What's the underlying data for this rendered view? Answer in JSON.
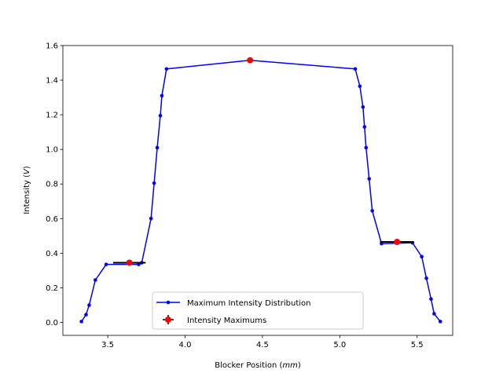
{
  "chart_data": {
    "type": "line",
    "title": "",
    "xlabel": {
      "prefix": "Blocker Position (",
      "unit": "mm",
      "suffix": ")"
    },
    "ylabel": {
      "prefix": "Intensity (",
      "unit": "V",
      "suffix": ")"
    },
    "xlim": [
      3.21,
      5.73
    ],
    "ylim": [
      -0.075,
      1.6
    ],
    "xticks": [
      3.5,
      4.0,
      4.5,
      5.0,
      5.5
    ],
    "xtick_labels": [
      "3.5",
      "4.0",
      "4.5",
      "5.0",
      "5.5"
    ],
    "yticks": [
      0.0,
      0.2,
      0.4,
      0.6,
      0.8,
      1.0,
      1.2,
      1.4,
      1.6
    ],
    "ytick_labels": [
      "0.0",
      "0.2",
      "0.4",
      "0.6",
      "0.8",
      "1.0",
      "1.2",
      "1.4",
      "1.6"
    ],
    "grid": false,
    "legend_position": "lower-center",
    "series": [
      {
        "name": "Maximum Intensity Distribution",
        "color": "#0000ff",
        "marker": "dot",
        "points": [
          [
            3.33,
            0.005
          ],
          [
            3.36,
            0.045
          ],
          [
            3.38,
            0.1
          ],
          [
            3.42,
            0.245
          ],
          [
            3.49,
            0.335
          ],
          [
            3.7,
            0.335
          ],
          [
            3.72,
            0.345
          ],
          [
            3.78,
            0.6
          ],
          [
            3.8,
            0.805
          ],
          [
            3.82,
            1.01
          ],
          [
            3.84,
            1.195
          ],
          [
            3.85,
            1.31
          ],
          [
            3.88,
            1.465
          ],
          [
            4.42,
            1.515
          ],
          [
            5.1,
            1.465
          ],
          [
            5.13,
            1.365
          ],
          [
            5.15,
            1.245
          ],
          [
            5.16,
            1.13
          ],
          [
            5.17,
            1.01
          ],
          [
            5.19,
            0.83
          ],
          [
            5.21,
            0.645
          ],
          [
            5.27,
            0.455
          ],
          [
            5.47,
            0.46
          ],
          [
            5.53,
            0.38
          ],
          [
            5.56,
            0.255
          ],
          [
            5.59,
            0.135
          ],
          [
            5.61,
            0.05
          ],
          [
            5.65,
            0.005
          ]
        ]
      },
      {
        "name": "Intensity Maximums",
        "color": "#ff0000",
        "marker": "circle",
        "errorbar_color": "#000000",
        "points": [
          {
            "x": 3.64,
            "y": 0.345,
            "xerr": 0.105
          },
          {
            "x": 4.42,
            "y": 1.515,
            "xerr": 0.0
          },
          {
            "x": 5.37,
            "y": 0.465,
            "xerr": 0.11
          }
        ]
      }
    ]
  }
}
